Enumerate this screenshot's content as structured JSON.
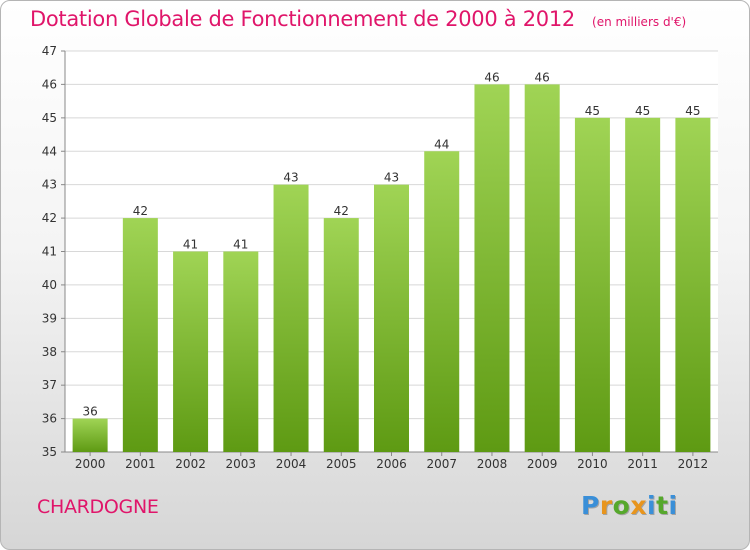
{
  "title": "Dotation Globale de Fonctionnement de 2000 à 2012",
  "unit": "(en milliers d'€)",
  "commune": "CHARDOGNE",
  "logo": {
    "text": "Proxiti",
    "colors": [
      "#3a8fd8",
      "#e8951d",
      "#56a82c",
      "#e8951d",
      "#3a8fd8",
      "#56a82c",
      "#3a8fd8"
    ]
  },
  "colors": {
    "bar_top": "#a0d455",
    "bar_bottom": "#5e9a13",
    "title": "#e0156a",
    "grid": "#d8d8d8"
  },
  "chart_data": {
    "type": "bar",
    "categories": [
      "2000",
      "2001",
      "2002",
      "2003",
      "2004",
      "2005",
      "2006",
      "2007",
      "2008",
      "2009",
      "2010",
      "2011",
      "2012"
    ],
    "values": [
      36,
      42,
      41,
      41,
      43,
      42,
      43,
      44,
      46,
      46,
      45,
      45,
      45
    ],
    "data_labels": [
      "36",
      "42",
      "41",
      "41",
      "43",
      "42",
      "43",
      "44",
      "46",
      "46",
      "45",
      "45",
      "45"
    ],
    "y_ticks": [
      35,
      36,
      37,
      38,
      39,
      40,
      41,
      42,
      43,
      44,
      45,
      46,
      47
    ],
    "ylim": [
      35,
      47
    ],
    "title": "Dotation Globale de Fonctionnement de 2000 à 2012",
    "xlabel": "",
    "ylabel": "",
    "grid": true,
    "legend": "none"
  }
}
